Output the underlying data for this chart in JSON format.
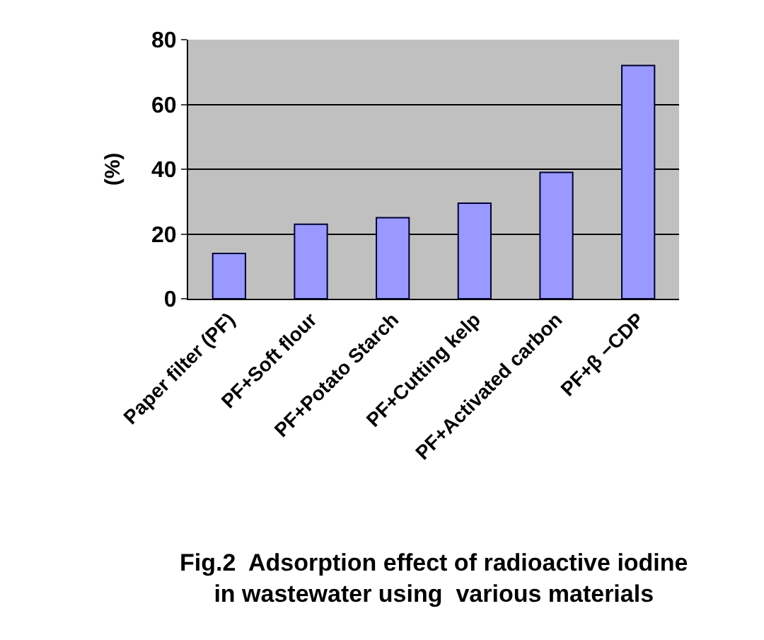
{
  "chart_data": {
    "type": "bar",
    "title": "Fig.2  Adsorption effect of radioactive iodine\nin wastewater using  various materials",
    "ylabel": "(%)",
    "categories": [
      "Paper filter (PF)",
      "PF+Soft flour",
      "PF+Potato Starch",
      "PF+Cutting kelp",
      "PF+Activated carbon",
      "PF+β −CDP"
    ],
    "values": [
      14,
      23,
      25,
      29.5,
      39,
      72
    ],
    "color": "#9999ff",
    "ylim": [
      0,
      80
    ],
    "yticks": [
      0,
      20,
      40,
      60,
      80
    ],
    "grid": "y",
    "legend": false
  }
}
